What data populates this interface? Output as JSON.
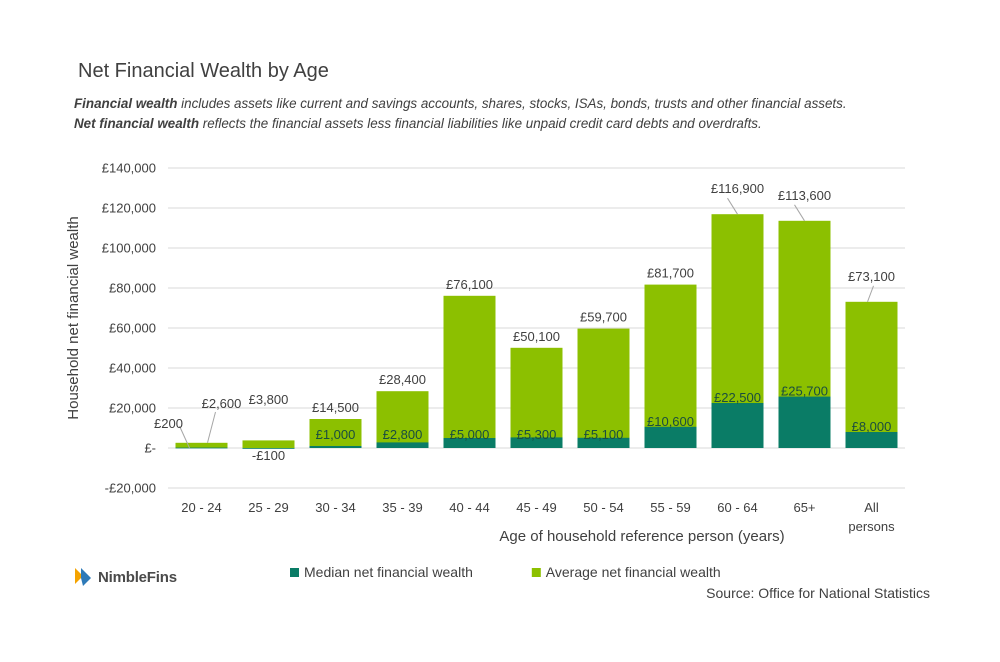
{
  "title": "Net Financial Wealth by Age",
  "description": {
    "line1_bold": "Financial wealth",
    "line1_rest": " includes assets like current and savings accounts, shares, stocks, ISAs, bonds, trusts and other financial assets.",
    "line2_bold": "Net financial wealth",
    "line2_rest": " reflects the financial assets less financial liabilities like unpaid credit card debts and overdrafts."
  },
  "logo": {
    "text": "NimbleFins",
    "icon": "nimblefins-logo-icon"
  },
  "source": "Source: Office for National Statistics",
  "colors": {
    "median": "#0a7c66",
    "average": "#8cc000",
    "grid": "#d9d9d9",
    "text": "#404040"
  },
  "chart_data": {
    "type": "bar",
    "stacked": "overlay",
    "title": "Net Financial Wealth by Age",
    "xlabel": "Age of household reference person (years)",
    "ylabel": "Household net financial wealth",
    "ylim": [
      -20000,
      140000
    ],
    "yticks": [
      -20000,
      0,
      20000,
      40000,
      60000,
      80000,
      100000,
      120000,
      140000
    ],
    "ytick_labels": [
      "-£20,000",
      "£-",
      "£20,000",
      "£40,000",
      "£60,000",
      "£80,000",
      "£100,000",
      "£120,000",
      "£140,000"
    ],
    "categories": [
      [
        "20 - 24"
      ],
      [
        "25 - 29"
      ],
      [
        "30 - 34"
      ],
      [
        "35 - 39"
      ],
      [
        "40 - 44"
      ],
      [
        "45 - 49"
      ],
      [
        "50 - 54"
      ],
      [
        "55 - 59"
      ],
      [
        "60 - 64"
      ],
      [
        "65+"
      ],
      [
        "All",
        "persons"
      ]
    ],
    "series": [
      {
        "name": "Median net financial wealth",
        "color": "#0a7c66",
        "values": [
          200,
          -100,
          1000,
          2800,
          5000,
          5300,
          5100,
          10600,
          22500,
          25700,
          8000
        ],
        "labels": [
          "£200",
          "-£100",
          "£1,000",
          "£2,800",
          "£5,000",
          "£5,300",
          "£5,100",
          "£10,600",
          "£22,500",
          "£25,700",
          "£8,000"
        ]
      },
      {
        "name": "Average net financial wealth",
        "color": "#8cc000",
        "values": [
          2600,
          3800,
          14500,
          28400,
          76100,
          50100,
          59700,
          81700,
          116900,
          113600,
          73100
        ],
        "labels": [
          "£2,600",
          "£3,800",
          "£14,500",
          "£28,400",
          "£76,100",
          "£50,100",
          "£59,700",
          "£81,700",
          "£116,900",
          "£113,600",
          "£73,100"
        ]
      }
    ],
    "legend": "bottom"
  }
}
